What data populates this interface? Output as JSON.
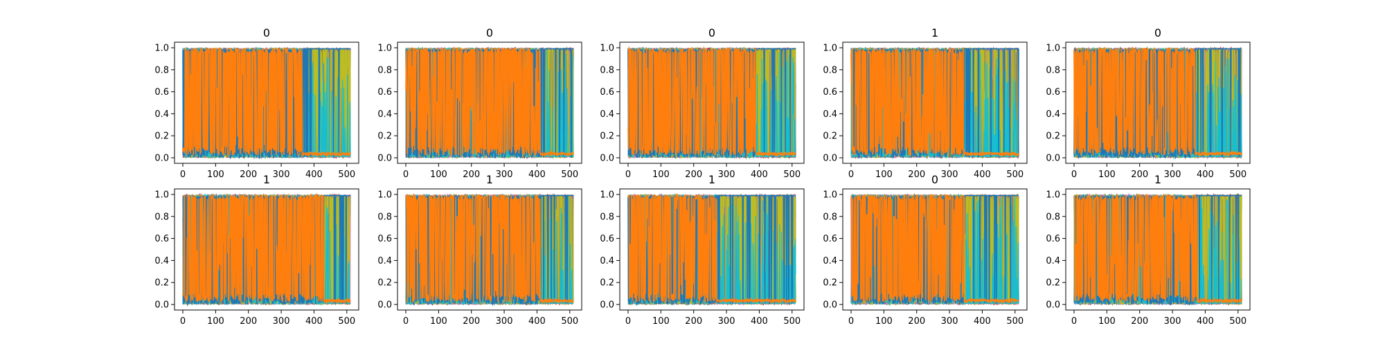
{
  "figure": {
    "rows": 2,
    "cols": 5,
    "colors": [
      "#1f77b4",
      "#ff7f0e",
      "#2ca02c",
      "#d62728",
      "#9467bd",
      "#8c564b",
      "#e377c2",
      "#7f7f7f",
      "#bcbd22",
      "#17becf"
    ]
  },
  "chart_data": [
    {
      "type": "line",
      "title": "0",
      "xlim": [
        0,
        511
      ],
      "ylim": [
        0.0,
        1.0
      ],
      "xticks": [
        "0",
        "100",
        "200",
        "300",
        "400",
        "500"
      ],
      "yticks": [
        "0.0",
        "0.2",
        "0.4",
        "0.6",
        "0.8",
        "1.0"
      ],
      "orange_dominant_x": [
        0,
        365
      ],
      "blue_dominant_x": [
        365,
        511
      ],
      "dominant_series": [
        "blue",
        "orange"
      ]
    },
    {
      "type": "line",
      "title": "0",
      "xlim": [
        0,
        511
      ],
      "ylim": [
        0.0,
        1.0
      ],
      "xticks": [
        "0",
        "100",
        "200",
        "300",
        "400",
        "500"
      ],
      "yticks": [
        "0.0",
        "0.2",
        "0.4",
        "0.6",
        "0.8",
        "1.0"
      ],
      "orange_dominant_x": [
        0,
        410
      ],
      "blue_dominant_x": [
        410,
        511
      ],
      "dominant_series": [
        "blue",
        "orange"
      ]
    },
    {
      "type": "line",
      "title": "0",
      "xlim": [
        0,
        511
      ],
      "ylim": [
        0.0,
        1.0
      ],
      "xticks": [
        "0",
        "100",
        "200",
        "300",
        "400",
        "500"
      ],
      "yticks": [
        "0.0",
        "0.2",
        "0.4",
        "0.6",
        "0.8",
        "1.0"
      ],
      "orange_dominant_x": [
        0,
        390
      ],
      "blue_dominant_x": [
        390,
        511
      ],
      "dominant_series": [
        "blue",
        "orange"
      ]
    },
    {
      "type": "line",
      "title": "1",
      "xlim": [
        0,
        511
      ],
      "ylim": [
        0.0,
        1.0
      ],
      "xticks": [
        "0",
        "100",
        "200",
        "300",
        "400",
        "500"
      ],
      "yticks": [
        "0.0",
        "0.2",
        "0.4",
        "0.6",
        "0.8",
        "1.0"
      ],
      "orange_dominant_x": [
        0,
        345
      ],
      "blue_dominant_x": [
        345,
        511
      ],
      "dominant_series": [
        "blue",
        "orange"
      ]
    },
    {
      "type": "line",
      "title": "0",
      "xlim": [
        0,
        511
      ],
      "ylim": [
        0.0,
        1.0
      ],
      "xticks": [
        "0",
        "100",
        "200",
        "300",
        "400",
        "500"
      ],
      "yticks": [
        "0.0",
        "0.2",
        "0.4",
        "0.6",
        "0.8",
        "1.0"
      ],
      "orange_dominant_x": [
        0,
        370
      ],
      "blue_dominant_x": [
        370,
        511
      ],
      "dominant_series": [
        "blue",
        "orange"
      ]
    },
    {
      "type": "line",
      "title": "1",
      "xlim": [
        0,
        511
      ],
      "ylim": [
        0.0,
        1.0
      ],
      "xticks": [
        "0",
        "100",
        "200",
        "300",
        "400",
        "500"
      ],
      "yticks": [
        "0.0",
        "0.2",
        "0.4",
        "0.6",
        "0.8",
        "1.0"
      ],
      "orange_dominant_x": [
        0,
        430
      ],
      "blue_dominant_x": [
        430,
        511
      ],
      "dominant_series": [
        "blue",
        "orange"
      ]
    },
    {
      "type": "line",
      "title": "1",
      "xlim": [
        0,
        511
      ],
      "ylim": [
        0.0,
        1.0
      ],
      "xticks": [
        "0",
        "100",
        "200",
        "300",
        "400",
        "500"
      ],
      "yticks": [
        "0.0",
        "0.2",
        "0.4",
        "0.6",
        "0.8",
        "1.0"
      ],
      "orange_dominant_x": [
        0,
        410
      ],
      "blue_dominant_x": [
        410,
        511
      ],
      "dominant_series": [
        "blue",
        "orange"
      ]
    },
    {
      "type": "line",
      "title": "1",
      "xlim": [
        0,
        511
      ],
      "ylim": [
        0.0,
        1.0
      ],
      "xticks": [
        "0",
        "100",
        "200",
        "300",
        "400",
        "500"
      ],
      "yticks": [
        "0.0",
        "0.2",
        "0.4",
        "0.6",
        "0.8",
        "1.0"
      ],
      "orange_dominant_x": [
        0,
        270
      ],
      "blue_dominant_x": [
        270,
        511
      ],
      "dominant_series": [
        "blue",
        "orange"
      ]
    },
    {
      "type": "line",
      "title": "0",
      "xlim": [
        0,
        511
      ],
      "ylim": [
        0.0,
        1.0
      ],
      "xticks": [
        "0",
        "100",
        "200",
        "300",
        "400",
        "500"
      ],
      "yticks": [
        "0.0",
        "0.2",
        "0.4",
        "0.6",
        "0.8",
        "1.0"
      ],
      "orange_dominant_x": [
        0,
        345
      ],
      "blue_dominant_x": [
        345,
        511
      ],
      "dominant_series": [
        "blue",
        "orange"
      ]
    },
    {
      "type": "line",
      "title": "1",
      "xlim": [
        0,
        511
      ],
      "ylim": [
        0.0,
        1.0
      ],
      "xticks": [
        "0",
        "100",
        "200",
        "300",
        "400",
        "500"
      ],
      "yticks": [
        "0.0",
        "0.2",
        "0.4",
        "0.6",
        "0.8",
        "1.0"
      ],
      "orange_dominant_x": [
        0,
        375
      ],
      "blue_dominant_x": [
        375,
        511
      ],
      "dominant_series": [
        "blue",
        "orange"
      ]
    }
  ]
}
